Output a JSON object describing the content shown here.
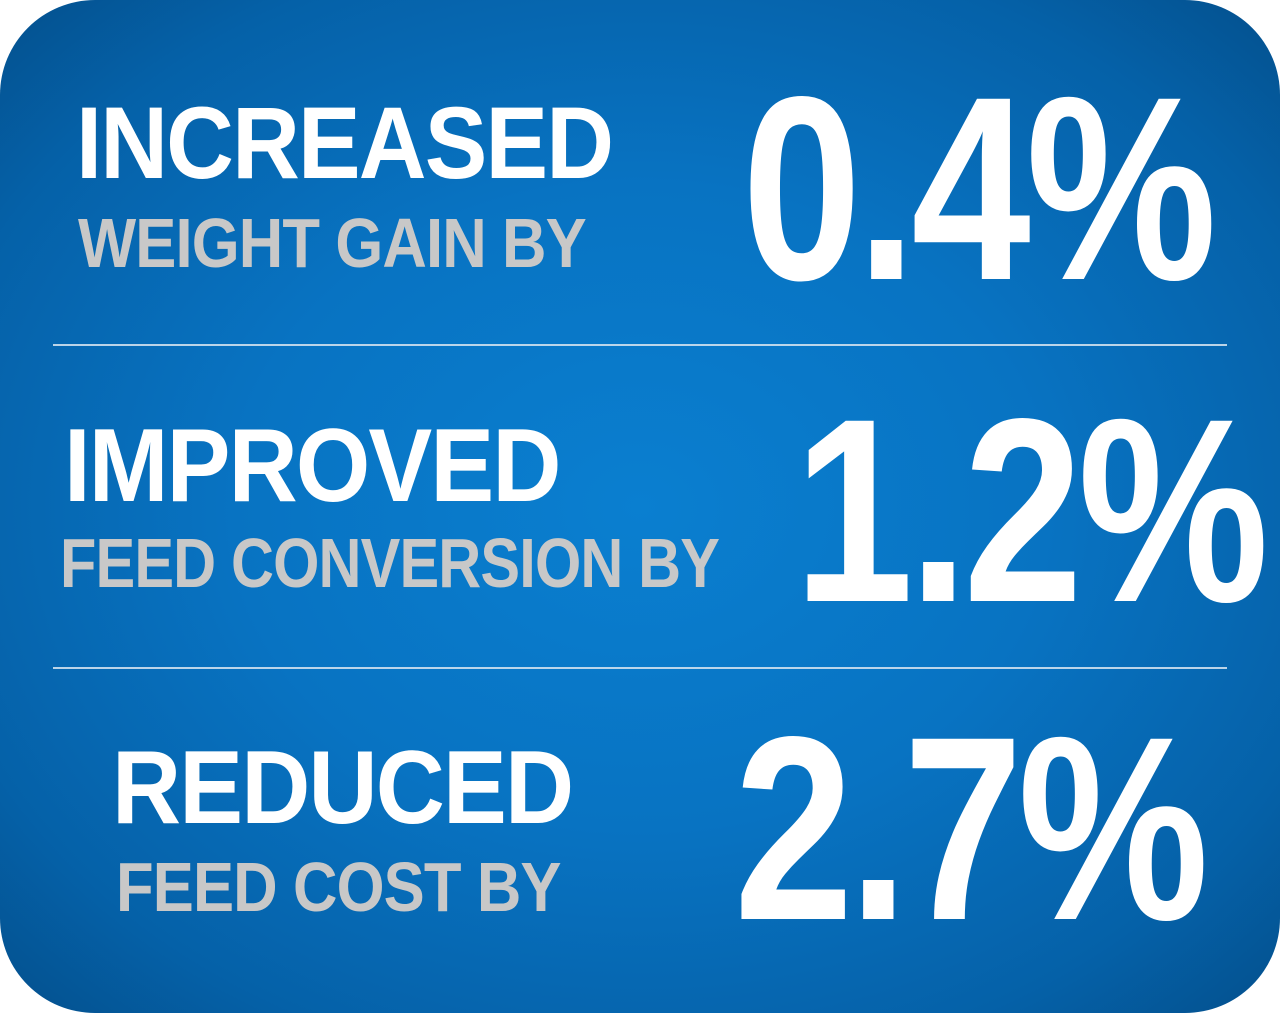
{
  "colors": {
    "background": "#0873c2",
    "headline": "#ffffff",
    "subline": "#c8c8c8",
    "divider": "#cfe0ee"
  },
  "stats": [
    {
      "headline": "INCREASED",
      "subline": "WEIGHT GAIN BY",
      "value": "0.4%"
    },
    {
      "headline": "IMPROVED",
      "subline": "FEED CONVERSION BY",
      "value": "1.2%"
    },
    {
      "headline": "REDUCED",
      "subline": "FEED COST BY",
      "value": "2.7%"
    }
  ]
}
